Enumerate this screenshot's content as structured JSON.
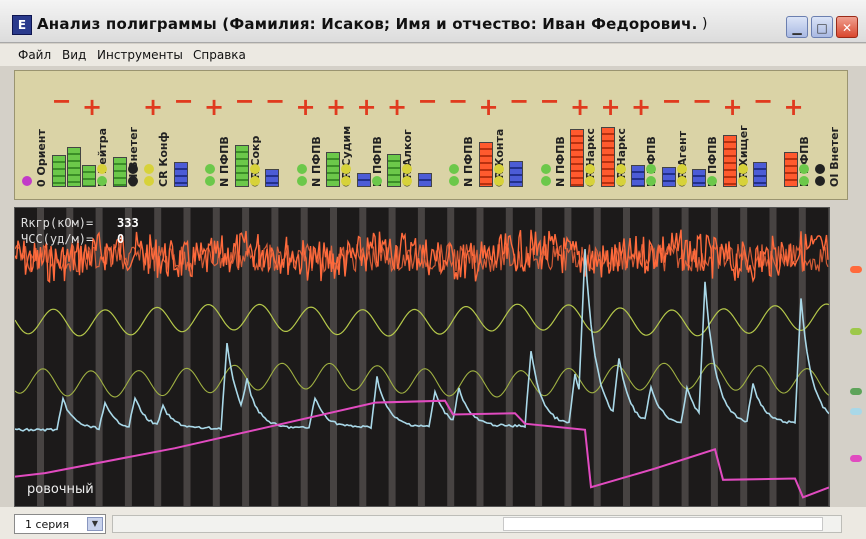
{
  "window": {
    "title": "Анализ полиграммы (Фамилия: Исаков; Имя и отчество: Иван Федорович.",
    "title_tail": ")",
    "app_icon": "polygraph-app-icon",
    "controls": [
      "minimize-icon",
      "maximize-icon",
      "close-icon"
    ]
  },
  "menu": {
    "items": [
      "Файл",
      "Вид",
      "Инструменты",
      "Справка"
    ]
  },
  "stimuli": [
    {
      "sign": "",
      "label": "0 Ориент",
      "bars": [],
      "dots": [
        "#c23ac8"
      ]
    },
    {
      "sign": "−",
      "label": "",
      "bars": [
        {
          "color": "green",
          "level": 0.32
        },
        {
          "color": "green",
          "level": 0.4
        }
      ],
      "dots": []
    },
    {
      "sign": "+",
      "label": "N Нейтра",
      "bars": [
        {
          "color": "green",
          "level": 0.22
        }
      ],
      "dots": [
        "#d7d23a",
        "#6cc84a"
      ]
    },
    {
      "sign": "",
      "label": "OI Внетег",
      "bars": [
        {
          "color": "green",
          "level": 0.3
        }
      ],
      "dots": [
        "#222222",
        "#222222"
      ]
    },
    {
      "sign": "+",
      "label": "CR Конф",
      "bars": [],
      "dots": [
        "#d7d23a",
        "#d7d23a"
      ]
    },
    {
      "sign": "−",
      "label": "",
      "bars": [
        {
          "color": "blue",
          "level": 0.25
        }
      ],
      "dots": []
    },
    {
      "sign": "+",
      "label": "N ПФПВ",
      "bars": [],
      "dots": [
        "#6cc84a",
        "#6cc84a"
      ]
    },
    {
      "sign": "−",
      "label": "CR Сокр",
      "bars": [
        {
          "color": "green",
          "level": 0.42
        }
      ],
      "dots": [
        "#d7d23a",
        "#d7d23a"
      ]
    },
    {
      "sign": "−",
      "label": "",
      "bars": [
        {
          "color": "blue",
          "level": 0.18
        }
      ],
      "dots": []
    },
    {
      "sign": "+",
      "label": "N ПФПВ",
      "bars": [],
      "dots": [
        "#6cc84a",
        "#6cc84a"
      ]
    },
    {
      "sign": "+",
      "label": "CR Судим",
      "bars": [
        {
          "color": "green",
          "level": 0.35
        }
      ],
      "dots": [
        "#d7d23a",
        "#d7d23a"
      ]
    },
    {
      "sign": "+",
      "label": "N ПФПВ",
      "bars": [
        {
          "color": "blue",
          "level": 0.14
        }
      ],
      "dots": [
        "#6cc84a"
      ]
    },
    {
      "sign": "+",
      "label": "CR Алког",
      "bars": [
        {
          "color": "green",
          "level": 0.33
        }
      ],
      "dots": [
        "#d7d23a",
        "#d7d23a"
      ]
    },
    {
      "sign": "−",
      "label": "",
      "bars": [
        {
          "color": "blue",
          "level": 0.14
        }
      ],
      "dots": []
    },
    {
      "sign": "−",
      "label": "N ПФПВ",
      "bars": [],
      "dots": [
        "#6cc84a",
        "#6cc84a"
      ]
    },
    {
      "sign": "+",
      "label": "CR Конта",
      "bars": [
        {
          "color": "red",
          "level": 0.45
        }
      ],
      "dots": [
        "#d7d23a",
        "#d7d23a"
      ]
    },
    {
      "sign": "−",
      "label": "",
      "bars": [
        {
          "color": "blue",
          "level": 0.26
        }
      ],
      "dots": []
    },
    {
      "sign": "−",
      "label": "N ПФПВ",
      "bars": [],
      "dots": [
        "#6cc84a",
        "#6cc84a"
      ]
    },
    {
      "sign": "+",
      "label": "CR Наркс",
      "bars": [
        {
          "color": "red",
          "level": 0.58
        }
      ],
      "dots": [
        "#d7d23a",
        "#d7d23a"
      ]
    },
    {
      "sign": "+",
      "label": "CR Наркс",
      "bars": [
        {
          "color": "red",
          "level": 0.6
        }
      ],
      "dots": [
        "#d7d23a",
        "#d7d23a"
      ]
    },
    {
      "sign": "+",
      "label": "N ПФПВ",
      "bars": [
        {
          "color": "blue",
          "level": 0.22
        }
      ],
      "dots": [
        "#6cc84a",
        "#6cc84a"
      ]
    },
    {
      "sign": "−",
      "label": "CR Агент",
      "bars": [
        {
          "color": "blue",
          "level": 0.2
        }
      ],
      "dots": [
        "#d7d23a",
        "#d7d23a"
      ]
    },
    {
      "sign": "−",
      "label": "N ПФПВ",
      "bars": [
        {
          "color": "blue",
          "level": 0.18
        }
      ],
      "dots": [
        "#6cc84a"
      ]
    },
    {
      "sign": "+",
      "label": "CR Хищег",
      "bars": [
        {
          "color": "red",
          "level": 0.52
        }
      ],
      "dots": [
        "#d7d23a",
        "#d7d23a"
      ]
    },
    {
      "sign": "−",
      "label": "",
      "bars": [
        {
          "color": "blue",
          "level": 0.25
        }
      ],
      "dots": []
    },
    {
      "sign": "+",
      "label": "N ПФПВ",
      "bars": [
        {
          "color": "red",
          "level": 0.35
        }
      ],
      "dots": [
        "#6cc84a",
        "#6cc84a"
      ]
    },
    {
      "sign": "",
      "label": "OI Внетег",
      "bars": [],
      "dots": [
        "#222222",
        "#222222"
      ]
    }
  ],
  "polygram": {
    "readouts": [
      {
        "label": "Rкгр(кОм)=",
        "value": "333"
      },
      {
        "label": "ЧСС(уд/м)=",
        "value": "0"
      }
    ],
    "bottom_label": "ровочный",
    "channel_colors": {
      "grid": "#6b6665",
      "breathing_upper": "#ff6a3c",
      "breathing_mid": "#b5c84a",
      "breathing_lower": "#9fb042",
      "gsr": "#a9d8e8",
      "plethysmogram": "#e14bc0"
    },
    "right_markers": [
      "#ff6a3c",
      "#9dc84a",
      "#5ea35a",
      "#a9d8e8",
      "#e14bc0"
    ]
  },
  "status": {
    "series_value": "1 серия",
    "series_arrow": "chevron-down-icon"
  }
}
